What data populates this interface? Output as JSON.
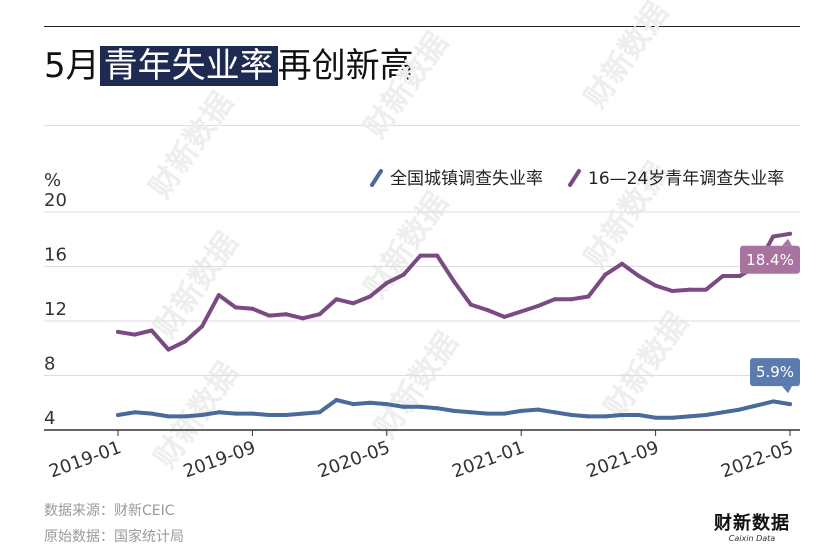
{
  "title": {
    "prefix": "5月",
    "highlight": "青年失业率",
    "suffix": "再创新高"
  },
  "chart_data": {
    "type": "line",
    "ylabel": "%",
    "ylim": [
      4,
      20
    ],
    "yticks": [
      "20",
      "16",
      "12",
      "8",
      "4"
    ],
    "xticks": [
      "2019-01",
      "2019-09",
      "2020-05",
      "2021-01",
      "2021-09",
      "2022-05"
    ],
    "grid": true,
    "legend_position": "top-right",
    "x": [
      "2019-01",
      "2019-02",
      "2019-03",
      "2019-04",
      "2019-05",
      "2019-06",
      "2019-07",
      "2019-08",
      "2019-09",
      "2019-10",
      "2019-11",
      "2019-12",
      "2020-01",
      "2020-02",
      "2020-03",
      "2020-04",
      "2020-05",
      "2020-06",
      "2020-07",
      "2020-08",
      "2020-09",
      "2020-10",
      "2020-11",
      "2020-12",
      "2021-01",
      "2021-02",
      "2021-03",
      "2021-04",
      "2021-05",
      "2021-06",
      "2021-07",
      "2021-08",
      "2021-09",
      "2021-10",
      "2021-11",
      "2021-12",
      "2022-01",
      "2022-02",
      "2022-03",
      "2022-04",
      "2022-05"
    ],
    "series": [
      {
        "name": "全国城镇调查失业率",
        "color": "#4a6a9a",
        "end_label": "5.9%",
        "label_color": "#5a7ab0",
        "values": [
          5.1,
          5.3,
          5.2,
          5.0,
          5.0,
          5.1,
          5.3,
          5.2,
          5.2,
          5.1,
          5.1,
          5.2,
          5.3,
          6.2,
          5.9,
          6.0,
          5.9,
          5.7,
          5.7,
          5.6,
          5.4,
          5.3,
          5.2,
          5.2,
          5.4,
          5.5,
          5.3,
          5.1,
          5.0,
          5.0,
          5.1,
          5.1,
          4.9,
          4.9,
          5.0,
          5.1,
          5.3,
          5.5,
          5.8,
          6.1,
          5.9
        ]
      },
      {
        "name": "16—24岁青年调查失业率",
        "color": "#7b4a84",
        "end_label": "18.4%",
        "label_color": "#a8749f",
        "values": [
          11.2,
          11.0,
          11.3,
          9.9,
          10.5,
          11.6,
          13.9,
          13.0,
          12.9,
          12.4,
          12.5,
          12.2,
          12.5,
          13.6,
          13.3,
          13.8,
          14.8,
          15.4,
          16.8,
          16.8,
          14.9,
          13.2,
          12.8,
          12.3,
          12.7,
          13.1,
          13.6,
          13.6,
          13.8,
          15.4,
          16.2,
          15.3,
          14.6,
          14.2,
          14.3,
          14.3,
          15.3,
          15.3,
          16.0,
          18.2,
          18.4
        ]
      }
    ]
  },
  "watermark": "财新数据",
  "footer": {
    "source": "数据来源：财新CEIC",
    "original": "原始数据：国家统计局"
  },
  "brand": {
    "name": "财新数据",
    "sub": "Caixin Data"
  }
}
